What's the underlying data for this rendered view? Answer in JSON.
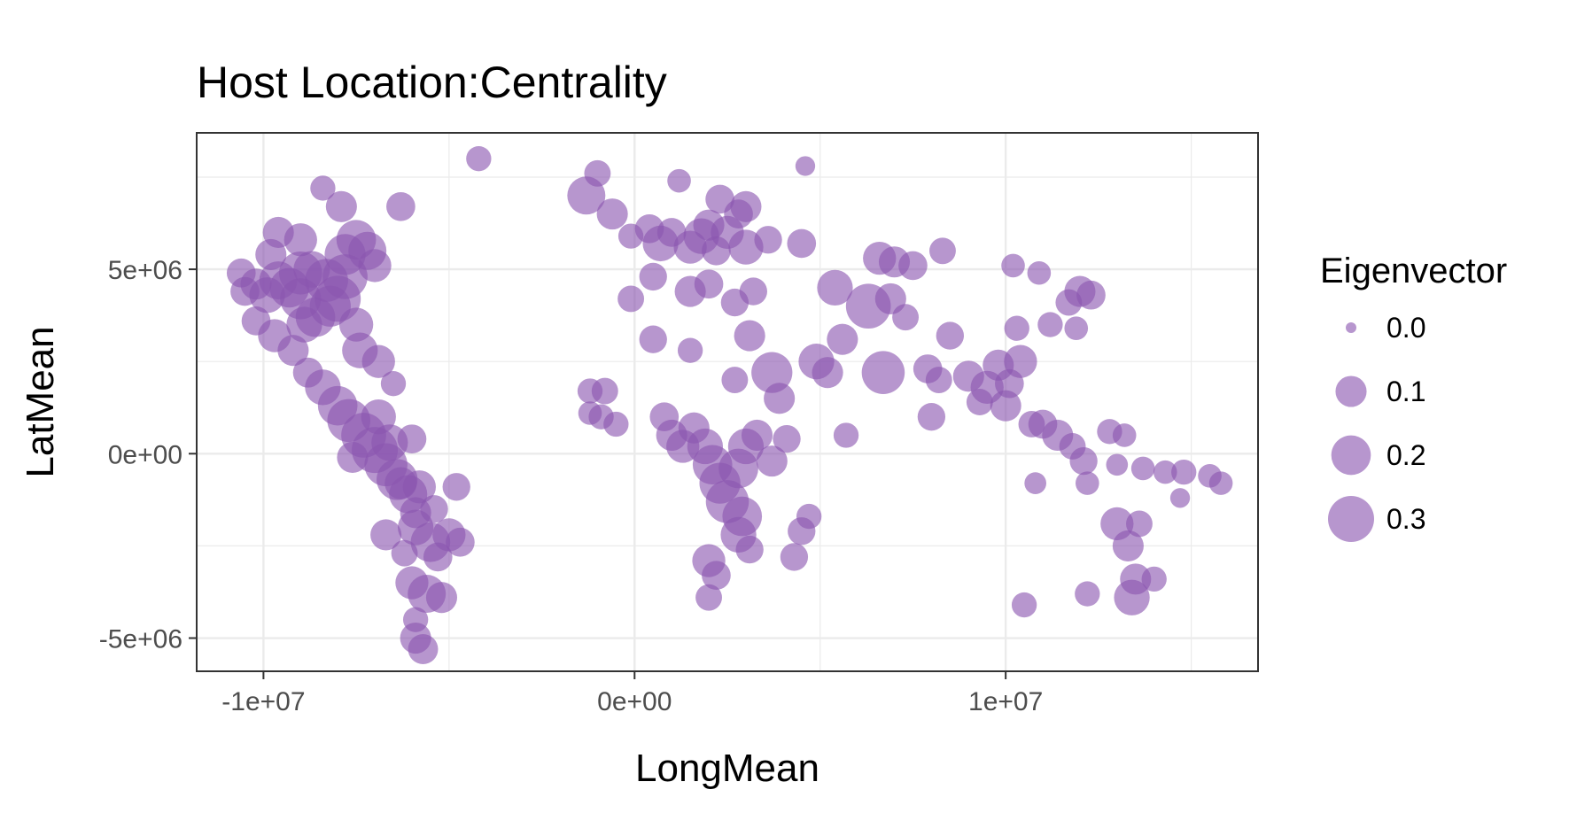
{
  "chart_data": {
    "type": "scatter",
    "title": "Host Location:Centrality",
    "xlabel": "LongMean",
    "ylabel": "LatMean",
    "xlim": [
      -11800000,
      16800000
    ],
    "ylim": [
      -5900000,
      8700000
    ],
    "x_ticks": [
      {
        "value": -10000000,
        "label": "-1e+07"
      },
      {
        "value": 0,
        "label": "0e+00"
      },
      {
        "value": 10000000,
        "label": "1e+07"
      }
    ],
    "y_ticks": [
      {
        "value": -5000000,
        "label": "-5e+06"
      },
      {
        "value": 0,
        "label": "0e+00"
      },
      {
        "value": 5000000,
        "label": "5e+06"
      }
    ],
    "grid": true,
    "point_color": "#8a56b0",
    "legend": {
      "title": "Eigenvector",
      "placement": "right",
      "entries": [
        {
          "value": 0.0,
          "label": "0.0"
        },
        {
          "value": 0.1,
          "label": "0.1"
        },
        {
          "value": 0.2,
          "label": "0.2"
        },
        {
          "value": 0.3,
          "label": "0.3"
        }
      ]
    },
    "series": [
      {
        "points": [
          [
            -10500000,
            4400000,
            0.08
          ],
          [
            -10200000,
            4600000,
            0.1
          ],
          [
            -9900000,
            4300000,
            0.15
          ],
          [
            -9600000,
            4700000,
            0.18
          ],
          [
            -9300000,
            4500000,
            0.2
          ],
          [
            -9000000,
            4200000,
            0.22
          ],
          [
            -9600000,
            6000000,
            0.1
          ],
          [
            -9000000,
            5800000,
            0.12
          ],
          [
            -8700000,
            5000000,
            0.16
          ],
          [
            -8300000,
            4700000,
            0.25
          ],
          [
            -8000000,
            4200000,
            0.3
          ],
          [
            -8600000,
            3700000,
            0.2
          ],
          [
            -7800000,
            5400000,
            0.22
          ],
          [
            -7500000,
            5800000,
            0.2
          ],
          [
            -7200000,
            5500000,
            0.18
          ],
          [
            -7000000,
            5100000,
            0.12
          ],
          [
            -7800000,
            4800000,
            0.28
          ],
          [
            -8400000,
            7200000,
            0.05
          ],
          [
            -7900000,
            6700000,
            0.1
          ],
          [
            -6300000,
            6700000,
            0.08
          ],
          [
            -10200000,
            3600000,
            0.08
          ],
          [
            -9700000,
            3200000,
            0.12
          ],
          [
            -9200000,
            2800000,
            0.1
          ],
          [
            -8800000,
            2200000,
            0.09
          ],
          [
            -8400000,
            1800000,
            0.15
          ],
          [
            -8000000,
            1300000,
            0.2
          ],
          [
            -7700000,
            900000,
            0.25
          ],
          [
            -7300000,
            500000,
            0.28
          ],
          [
            -7000000,
            100000,
            0.3
          ],
          [
            -6700000,
            -300000,
            0.25
          ],
          [
            -6400000,
            -700000,
            0.22
          ],
          [
            -6100000,
            -1100000,
            0.18
          ],
          [
            -7400000,
            2800000,
            0.15
          ],
          [
            -6900000,
            2500000,
            0.12
          ],
          [
            -7600000,
            -100000,
            0.1
          ],
          [
            -6000000,
            400000,
            0.08
          ],
          [
            -5800000,
            -900000,
            0.12
          ],
          [
            -5900000,
            -2000000,
            0.15
          ],
          [
            -5500000,
            -2400000,
            0.2
          ],
          [
            -5000000,
            -2200000,
            0.12
          ],
          [
            -4700000,
            -2400000,
            0.08
          ],
          [
            -6700000,
            -2200000,
            0.1
          ],
          [
            -6200000,
            -2700000,
            0.06
          ],
          [
            -6000000,
            -3500000,
            0.12
          ],
          [
            -5600000,
            -3800000,
            0.18
          ],
          [
            -5200000,
            -3900000,
            0.1
          ],
          [
            -5900000,
            -5000000,
            0.1
          ],
          [
            -5700000,
            -5300000,
            0.09
          ],
          [
            -5900000,
            -4500000,
            0.05
          ],
          [
            -4200000,
            8000000,
            0.05
          ],
          [
            -4800000,
            -900000,
            0.07
          ],
          [
            -6500000,
            1900000,
            0.05
          ],
          [
            -9000000,
            4900000,
            0.25
          ],
          [
            -9800000,
            5400000,
            0.1
          ],
          [
            -10600000,
            4900000,
            0.08
          ],
          [
            -8200000,
            4000000,
            0.22
          ],
          [
            -8900000,
            3500000,
            0.15
          ],
          [
            -7500000,
            3500000,
            0.13
          ],
          [
            -6900000,
            1000000,
            0.14
          ],
          [
            -6600000,
            300000,
            0.16
          ],
          [
            -5900000,
            -1600000,
            0.1
          ],
          [
            -5300000,
            -2800000,
            0.08
          ],
          [
            -6300000,
            -800000,
            0.11
          ],
          [
            -5400000,
            -1500000,
            0.07
          ],
          [
            -1300000,
            7000000,
            0.18
          ],
          [
            -1000000,
            7600000,
            0.06
          ],
          [
            -600000,
            6500000,
            0.1
          ],
          [
            -100000,
            5900000,
            0.05
          ],
          [
            400000,
            6100000,
            0.08
          ],
          [
            700000,
            5700000,
            0.15
          ],
          [
            1000000,
            6000000,
            0.08
          ],
          [
            1200000,
            7400000,
            0.04
          ],
          [
            1500000,
            5600000,
            0.12
          ],
          [
            1800000,
            5900000,
            0.15
          ],
          [
            2000000,
            6200000,
            0.1
          ],
          [
            2200000,
            5500000,
            0.08
          ],
          [
            2500000,
            6000000,
            0.12
          ],
          [
            2800000,
            6500000,
            0.08
          ],
          [
            3000000,
            5600000,
            0.14
          ],
          [
            2300000,
            6900000,
            0.08
          ],
          [
            3000000,
            6700000,
            0.1
          ],
          [
            3600000,
            5800000,
            0.07
          ],
          [
            4500000,
            5700000,
            0.08
          ],
          [
            4600000,
            7800000,
            0.02
          ],
          [
            5400000,
            4500000,
            0.15
          ],
          [
            6300000,
            4000000,
            0.28
          ],
          [
            6600000,
            5300000,
            0.12
          ],
          [
            7000000,
            5200000,
            0.1
          ],
          [
            7500000,
            5100000,
            0.08
          ],
          [
            6900000,
            4200000,
            0.1
          ],
          [
            7300000,
            3700000,
            0.06
          ],
          [
            8300000,
            5500000,
            0.06
          ],
          [
            500000,
            4800000,
            0.07
          ],
          [
            -100000,
            4200000,
            0.06
          ],
          [
            1500000,
            4400000,
            0.1
          ],
          [
            2000000,
            4600000,
            0.08
          ],
          [
            2700000,
            4100000,
            0.07
          ],
          [
            3200000,
            4400000,
            0.07
          ],
          [
            3100000,
            3200000,
            0.1
          ],
          [
            3700000,
            2200000,
            0.22
          ],
          [
            4900000,
            2500000,
            0.15
          ],
          [
            5200000,
            2200000,
            0.1
          ],
          [
            5600000,
            3100000,
            0.1
          ],
          [
            6700000,
            2200000,
            0.25
          ],
          [
            500000,
            3100000,
            0.07
          ],
          [
            1500000,
            2800000,
            0.05
          ],
          [
            2700000,
            2000000,
            0.06
          ],
          [
            -1200000,
            1700000,
            0.05
          ],
          [
            -800000,
            1700000,
            0.06
          ],
          [
            -1200000,
            1100000,
            0.04
          ],
          [
            -900000,
            1000000,
            0.05
          ],
          [
            -500000,
            800000,
            0.05
          ],
          [
            800000,
            1000000,
            0.08
          ],
          [
            1000000,
            500000,
            0.1
          ],
          [
            1300000,
            200000,
            0.12
          ],
          [
            1600000,
            700000,
            0.1
          ],
          [
            1900000,
            200000,
            0.15
          ],
          [
            2100000,
            -300000,
            0.2
          ],
          [
            2300000,
            -800000,
            0.22
          ],
          [
            2500000,
            -1300000,
            0.25
          ],
          [
            2800000,
            -400000,
            0.2
          ],
          [
            3000000,
            200000,
            0.15
          ],
          [
            3300000,
            500000,
            0.1
          ],
          [
            2900000,
            -1700000,
            0.2
          ],
          [
            2800000,
            -2200000,
            0.15
          ],
          [
            3100000,
            -2600000,
            0.07
          ],
          [
            2000000,
            -2900000,
            0.12
          ],
          [
            2200000,
            -3300000,
            0.08
          ],
          [
            2000000,
            -3900000,
            0.06
          ],
          [
            3900000,
            1500000,
            0.1
          ],
          [
            4100000,
            400000,
            0.07
          ],
          [
            3700000,
            -200000,
            0.1
          ],
          [
            4700000,
            -1700000,
            0.05
          ],
          [
            4500000,
            -2100000,
            0.07
          ],
          [
            4300000,
            -2800000,
            0.07
          ],
          [
            5700000,
            500000,
            0.05
          ],
          [
            7900000,
            2300000,
            0.08
          ],
          [
            8200000,
            2000000,
            0.06
          ],
          [
            8500000,
            3200000,
            0.07
          ],
          [
            9000000,
            2100000,
            0.1
          ],
          [
            9500000,
            1800000,
            0.12
          ],
          [
            9800000,
            2400000,
            0.1
          ],
          [
            10100000,
            1900000,
            0.08
          ],
          [
            10400000,
            2500000,
            0.12
          ],
          [
            8000000,
            1000000,
            0.07
          ],
          [
            9300000,
            1400000,
            0.06
          ],
          [
            10000000,
            1300000,
            0.1
          ],
          [
            10700000,
            800000,
            0.06
          ],
          [
            11000000,
            800000,
            0.08
          ],
          [
            11400000,
            500000,
            0.1
          ],
          [
            10300000,
            3400000,
            0.05
          ],
          [
            11200000,
            3500000,
            0.05
          ],
          [
            11700000,
            4100000,
            0.06
          ],
          [
            12000000,
            4400000,
            0.1
          ],
          [
            12300000,
            4300000,
            0.08
          ],
          [
            11900000,
            3400000,
            0.04
          ],
          [
            10200000,
            5100000,
            0.04
          ],
          [
            10900000,
            4900000,
            0.04
          ],
          [
            11800000,
            200000,
            0.06
          ],
          [
            12100000,
            -200000,
            0.07
          ],
          [
            12800000,
            600000,
            0.05
          ],
          [
            13200000,
            500000,
            0.04
          ],
          [
            13000000,
            -300000,
            0.03
          ],
          [
            12200000,
            -800000,
            0.04
          ],
          [
            10800000,
            -800000,
            0.03
          ],
          [
            13000000,
            -1900000,
            0.12
          ],
          [
            13300000,
            -2500000,
            0.1
          ],
          [
            13600000,
            -1900000,
            0.06
          ],
          [
            13500000,
            -3400000,
            0.1
          ],
          [
            13400000,
            -3900000,
            0.15
          ],
          [
            14000000,
            -3400000,
            0.05
          ],
          [
            12200000,
            -3800000,
            0.05
          ],
          [
            10500000,
            -4100000,
            0.05
          ],
          [
            13700000,
            -400000,
            0.04
          ],
          [
            14300000,
            -500000,
            0.04
          ],
          [
            14800000,
            -500000,
            0.05
          ],
          [
            15500000,
            -600000,
            0.04
          ],
          [
            15800000,
            -800000,
            0.04
          ],
          [
            14700000,
            -1200000,
            0.02
          ]
        ]
      }
    ]
  }
}
